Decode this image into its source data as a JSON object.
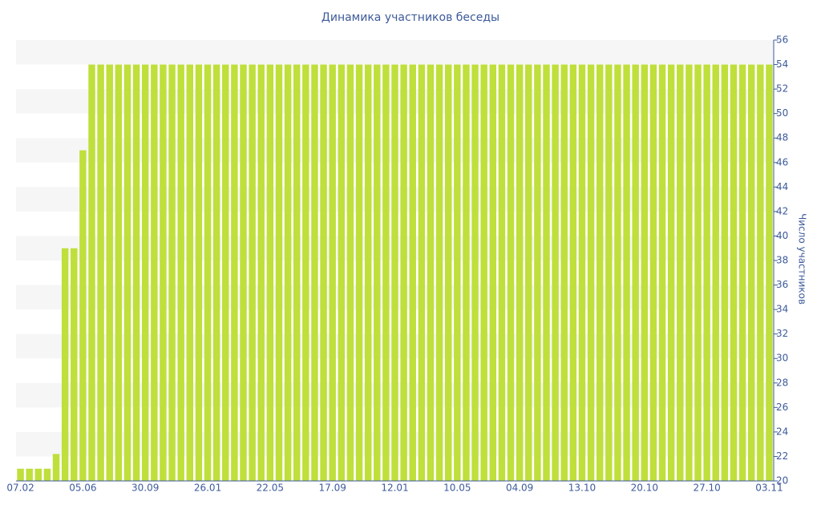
{
  "chart_data": {
    "type": "bar",
    "title": "Динамика участников беседы",
    "y_axis_label": "Число участников",
    "categories": [
      "07.02",
      null,
      null,
      null,
      null,
      null,
      null,
      "05.06",
      null,
      null,
      null,
      null,
      null,
      null,
      "30.09",
      null,
      null,
      null,
      null,
      null,
      null,
      "26.01",
      null,
      null,
      null,
      null,
      null,
      null,
      "22.05",
      null,
      null,
      null,
      null,
      null,
      null,
      "17.09",
      null,
      null,
      null,
      null,
      null,
      null,
      "12.01",
      null,
      null,
      null,
      null,
      null,
      null,
      "10.05",
      null,
      null,
      null,
      null,
      null,
      null,
      "04.09",
      null,
      null,
      null,
      null,
      null,
      null,
      "13.10",
      null,
      null,
      null,
      null,
      null,
      null,
      "20.10",
      null,
      null,
      null,
      null,
      null,
      null,
      "27.10",
      null,
      null,
      null,
      null,
      null,
      null,
      "03.11"
    ],
    "values": [
      21,
      21,
      21,
      21,
      22.2,
      39,
      39,
      47,
      54,
      54,
      54,
      54,
      54,
      54,
      54,
      54,
      54,
      54,
      54,
      54,
      54,
      54,
      54,
      54,
      54,
      54,
      54,
      54,
      54,
      54,
      54,
      54,
      54,
      54,
      54,
      54,
      54,
      54,
      54,
      54,
      54,
      54,
      54,
      54,
      54,
      54,
      54,
      54,
      54,
      54,
      54,
      54,
      54,
      54,
      54,
      54,
      54,
      54,
      54,
      54,
      54,
      54,
      54,
      54,
      54,
      54,
      54,
      54,
      54,
      54,
      54,
      54,
      54,
      54,
      54,
      54,
      54,
      54,
      54,
      54,
      54,
      54,
      54,
      54,
      54
    ],
    "color": "#bfdf3b",
    "ylim": [
      20,
      56
    ],
    "yticks": [
      20,
      22,
      24,
      26,
      28,
      30,
      32,
      34,
      36,
      38,
      40,
      42,
      44,
      46,
      48,
      50,
      52,
      54,
      56
    ]
  }
}
